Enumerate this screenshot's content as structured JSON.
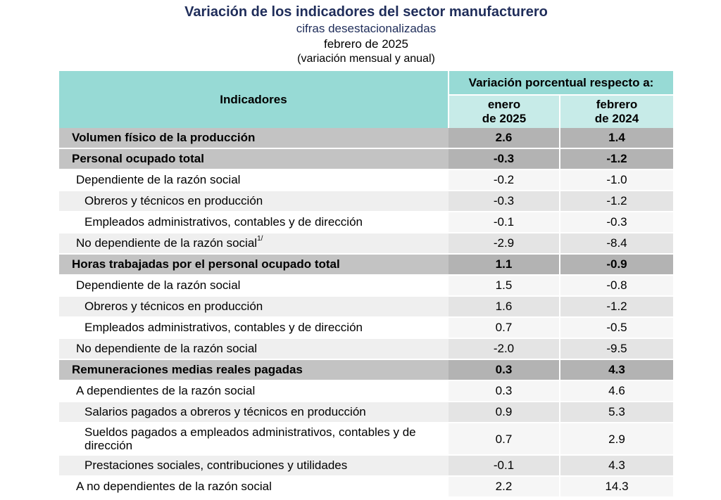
{
  "title": {
    "main": "Variación de los indicadores del sector manufacturero",
    "sub1": "cifras desestacionalizadas",
    "sub2": "febrero de 2025",
    "sub3": "(variación mensual y anual)"
  },
  "header": {
    "indicators": "Indicadores",
    "span": "Variación porcentual respecto a:",
    "col1_l1": "enero",
    "col1_l2": "de 2025",
    "col2_l1": "febrero",
    "col2_l2": "de 2024"
  },
  "rows": [
    {
      "label": "Volumen físico de la producción",
      "v1": "2.6",
      "v2": "1.4"
    },
    {
      "label": "Personal ocupado total",
      "v1": "-0.3",
      "v2": "-1.2"
    },
    {
      "label": "Dependiente de la razón social",
      "v1": "-0.2",
      "v2": "-1.0"
    },
    {
      "label": "Obreros y técnicos en producción",
      "v1": "-0.3",
      "v2": "-1.2"
    },
    {
      "label": "Empleados administrativos, contables y de dirección",
      "v1": "-0.1",
      "v2": "-0.3"
    },
    {
      "label": "No dependiente de la razón social",
      "note": "1/",
      "v1": "-2.9",
      "v2": "-8.4"
    },
    {
      "label": "Horas trabajadas por el personal ocupado total",
      "v1": "1.1",
      "v2": "-0.9"
    },
    {
      "label": "Dependiente de la razón social",
      "v1": "1.5",
      "v2": "-0.8"
    },
    {
      "label": "Obreros y técnicos en producción",
      "v1": "1.6",
      "v2": "-1.2"
    },
    {
      "label": "Empleados administrativos, contables y de dirección",
      "v1": "0.7",
      "v2": "-0.5"
    },
    {
      "label": "No dependiente de la razón social",
      "v1": "-2.0",
      "v2": "-9.5"
    },
    {
      "label": "Remuneraciones medias reales pagadas",
      "v1": "0.3",
      "v2": "4.3"
    },
    {
      "label": "A dependientes de la razón social",
      "v1": "0.3",
      "v2": "4.6"
    },
    {
      "label": "Salarios pagados a obreros y técnicos en producción",
      "v1": "0.9",
      "v2": "5.3"
    },
    {
      "label": "Sueldos pagados a empleados administrativos, contables y de dirección",
      "v1": "0.7",
      "v2": "2.9"
    },
    {
      "label": "Prestaciones sociales, contribuciones y utilidades",
      "v1": "-0.1",
      "v2": "4.3"
    },
    {
      "label": "A no dependientes de la razón social",
      "v1": "2.2",
      "v2": "14.3"
    }
  ]
}
